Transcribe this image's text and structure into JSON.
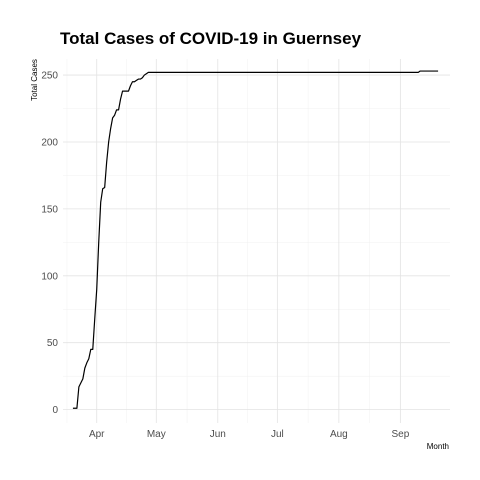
{
  "chart_data": {
    "type": "line",
    "title": "Total Cases of COVID-19 in Guernsey",
    "xlabel": "Month",
    "ylabel": "Total Cases",
    "x_tick_labels": [
      "Apr",
      "May",
      "Jun",
      "Jul",
      "Aug",
      "Sep"
    ],
    "x_tick_dates": [
      "2020-04-01",
      "2020-05-01",
      "2020-06-01",
      "2020-07-01",
      "2020-08-01",
      "2020-09-01"
    ],
    "x_range": [
      "2020-03-15",
      "2020-09-26"
    ],
    "y_ticks": [
      0,
      50,
      100,
      150,
      200,
      250
    ],
    "y_tick_labels": [
      "0",
      "50",
      "100",
      "150",
      "200",
      "250"
    ],
    "ylim": [
      -10,
      262
    ],
    "grid": true,
    "series": [
      {
        "x": [
          "2020-03-20",
          "2020-03-21",
          "2020-03-22",
          "2020-03-23",
          "2020-03-24",
          "2020-03-25",
          "2020-03-26",
          "2020-03-27",
          "2020-03-28",
          "2020-03-29",
          "2020-03-30",
          "2020-03-31",
          "2020-04-01",
          "2020-04-02",
          "2020-04-03",
          "2020-04-04",
          "2020-04-05",
          "2020-04-06",
          "2020-04-07",
          "2020-04-08",
          "2020-04-09",
          "2020-04-10",
          "2020-04-11",
          "2020-04-12",
          "2020-04-13",
          "2020-04-14",
          "2020-04-15",
          "2020-04-16",
          "2020-04-17",
          "2020-04-18",
          "2020-04-19",
          "2020-04-20",
          "2020-04-21",
          "2020-04-22",
          "2020-04-23",
          "2020-04-24",
          "2020-04-25",
          "2020-04-26",
          "2020-04-27",
          "2020-04-28",
          "2020-04-29",
          "2020-04-30",
          "2020-05-01",
          "2020-05-02",
          "2020-05-05",
          "2020-09-10",
          "2020-09-11",
          "2020-09-14",
          "2020-09-20"
        ],
        "y": [
          1,
          1,
          1,
          17,
          20,
          23,
          31,
          35,
          38,
          45,
          45,
          68,
          90,
          125,
          155,
          165,
          166,
          185,
          200,
          210,
          218,
          220,
          224,
          224,
          232,
          238,
          238,
          238,
          238,
          242,
          245,
          245,
          246,
          247,
          247,
          248,
          250,
          251,
          252,
          252,
          252,
          252,
          252,
          252,
          252,
          252,
          253,
          253,
          253
        ]
      }
    ]
  }
}
